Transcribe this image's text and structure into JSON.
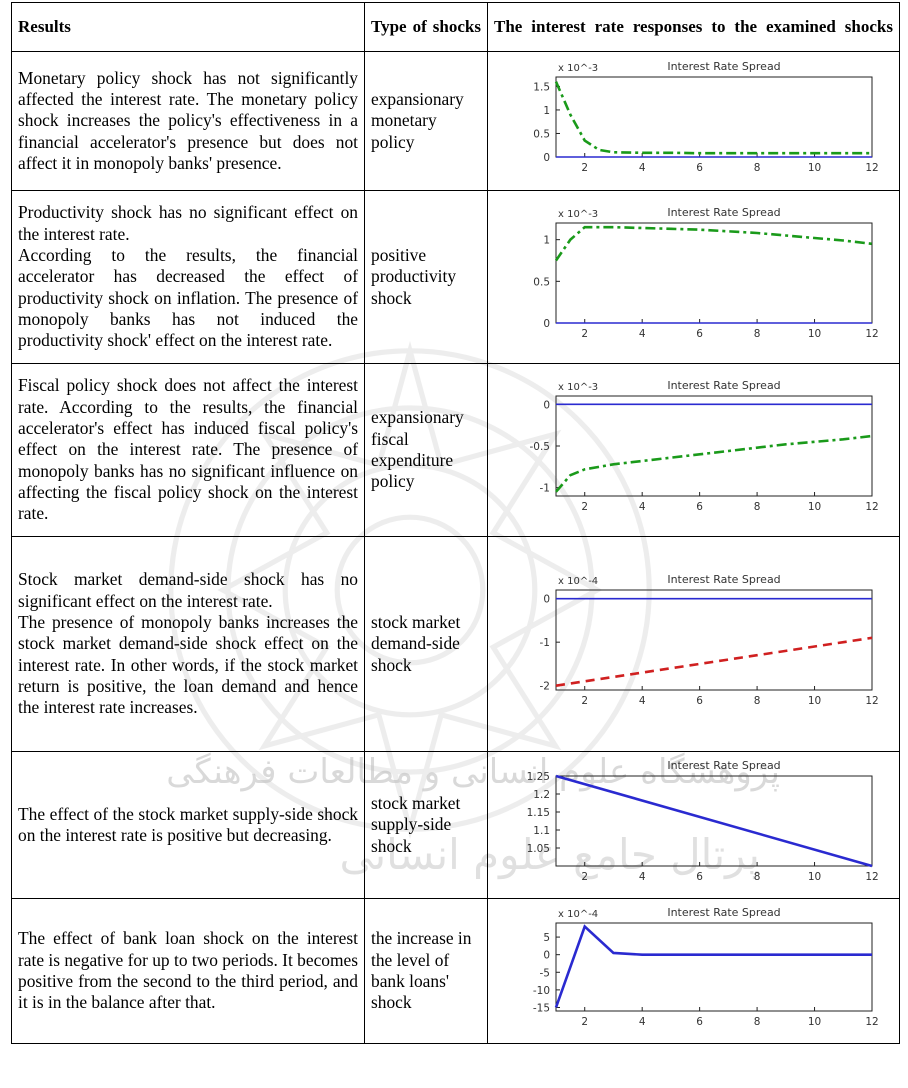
{
  "header": {
    "col1": "Results",
    "col2": "Type of shocks",
    "col3": "The interest rate responses to the examined shocks"
  },
  "watermark": {
    "line1": "پژوهشگاه علوم انسانی و مطالعات فرهنگی",
    "line2": "پرتال جامع علوم انسانی"
  },
  "rows": [
    {
      "result": "Monetary policy shock has not significantly affected the interest rate. The monetary policy shock increases the policy's effectiveness in a financial accelerator's presence but does not affect it in monopoly banks' presence.",
      "type": "expansionary monetary policy"
    },
    {
      "result_p1": "Productivity shock has no significant effect on the interest rate.",
      "result_p2": "According to the results, the financial accelerator has decreased the effect of productivity shock on inflation. The presence of monopoly banks has not induced the productivity shock' effect on the interest rate.",
      "type": "positive productivity shock"
    },
    {
      "result": "Fiscal policy shock does not affect the interest rate. According to the results, the financial accelerator's effect has induced fiscal policy's effect on the interest rate. The presence of monopoly banks has no significant influence on affecting the fiscal policy shock on the interest rate.",
      "type": "expansionary fiscal expenditure policy"
    },
    {
      "result_p1": "Stock market demand-side shock has no significant effect on the interest rate.",
      "result_p2": "The presence of monopoly banks increases the stock market demand-side shock effect on the interest rate. In other words, if the stock market return is positive, the loan demand and hence the interest rate increases.",
      "type": "stock market demand-side shock"
    },
    {
      "result": "The effect of the stock market supply-side shock on the interest rate is positive but decreasing.",
      "type": "stock market supply-side shock"
    },
    {
      "result": "The effect of bank loan shock on the interest rate is negative for up to two periods. It becomes positive from the second to the third period, and it is in the balance after that.",
      "type": "the increase in the level of bank loans' shock"
    }
  ],
  "chart_data": [
    {
      "type": "line",
      "title": "Interest Rate Spread",
      "scale_label": "x 10^-3",
      "x_ticks": [
        2,
        4,
        6,
        8,
        10,
        12
      ],
      "y_ticks": [
        "0",
        "0.5",
        "1",
        "1.5"
      ],
      "xlim": [
        1,
        12
      ],
      "ylim": [
        0,
        1.7
      ],
      "series": [
        {
          "style": "baseline",
          "color": "#2a2ad0",
          "x": [
            1,
            12
          ],
          "y": [
            0,
            0
          ]
        },
        {
          "style": "dashdot",
          "color": "#1a9a1a",
          "x": [
            1,
            1.5,
            2,
            2.5,
            3,
            4,
            5,
            6,
            7,
            8,
            9,
            10,
            11,
            12
          ],
          "y": [
            1.6,
            0.9,
            0.35,
            0.15,
            0.1,
            0.09,
            0.09,
            0.08,
            0.08,
            0.08,
            0.08,
            0.08,
            0.08,
            0.08
          ]
        }
      ]
    },
    {
      "type": "line",
      "title": "Interest Rate Spread",
      "scale_label": "x 10^-3",
      "x_ticks": [
        2,
        4,
        6,
        8,
        10,
        12
      ],
      "y_ticks": [
        "0",
        "0.5",
        "1"
      ],
      "xlim": [
        1,
        12
      ],
      "ylim": [
        0,
        1.2
      ],
      "series": [
        {
          "style": "baseline",
          "color": "#2a2ad0",
          "x": [
            1,
            12
          ],
          "y": [
            0,
            0
          ]
        },
        {
          "style": "dashdot",
          "color": "#1a9a1a",
          "x": [
            1,
            1.5,
            2,
            3,
            4,
            5,
            6,
            7,
            8,
            9,
            10,
            11,
            12
          ],
          "y": [
            0.75,
            1.0,
            1.15,
            1.15,
            1.14,
            1.13,
            1.12,
            1.1,
            1.08,
            1.05,
            1.02,
            0.99,
            0.95
          ]
        }
      ]
    },
    {
      "type": "line",
      "title": "Interest Rate Spread",
      "scale_label": "x 10^-3",
      "x_ticks": [
        2,
        4,
        6,
        8,
        10,
        12
      ],
      "y_ticks": [
        "-1",
        "-0.5",
        "0"
      ],
      "xlim": [
        1,
        12
      ],
      "ylim": [
        -1.1,
        0.1
      ],
      "series": [
        {
          "style": "baseline",
          "color": "#2a2ad0",
          "x": [
            1,
            12
          ],
          "y": [
            0,
            0
          ]
        },
        {
          "style": "dashdot",
          "color": "#1a9a1a",
          "x": [
            1,
            1.5,
            2,
            3,
            4,
            5,
            6,
            7,
            8,
            9,
            10,
            11,
            12
          ],
          "y": [
            -1.05,
            -0.85,
            -0.78,
            -0.72,
            -0.68,
            -0.64,
            -0.6,
            -0.56,
            -0.52,
            -0.48,
            -0.45,
            -0.42,
            -0.38
          ]
        }
      ]
    },
    {
      "type": "line",
      "title": "Interest Rate Spread",
      "scale_label": "x 10^-4",
      "x_ticks": [
        2,
        4,
        6,
        8,
        10,
        12
      ],
      "y_ticks": [
        "-2",
        "-1",
        "0"
      ],
      "xlim": [
        1,
        12
      ],
      "ylim": [
        -2.1,
        0.2
      ],
      "series": [
        {
          "style": "baseline",
          "color": "#2a2ad0",
          "x": [
            1,
            12
          ],
          "y": [
            0,
            0
          ]
        },
        {
          "style": "dashed",
          "color": "#d02020",
          "x": [
            1,
            2,
            3,
            4,
            5,
            6,
            7,
            8,
            9,
            10,
            11,
            12
          ],
          "y": [
            -2.0,
            -1.9,
            -1.8,
            -1.7,
            -1.6,
            -1.5,
            -1.4,
            -1.3,
            -1.2,
            -1.1,
            -1.0,
            -0.9
          ]
        }
      ]
    },
    {
      "type": "line",
      "title": "Interest Rate Spread",
      "scale_label": "",
      "x_ticks": [
        2,
        4,
        6,
        8,
        10,
        12
      ],
      "y_ticks": [
        "1.05",
        "1.1",
        "1.15",
        "1.2",
        "1.25"
      ],
      "xlim": [
        1,
        12
      ],
      "ylim": [
        1.0,
        1.25
      ],
      "series": [
        {
          "style": "solid",
          "color": "#2a2ad0",
          "x": [
            1,
            12
          ],
          "y": [
            1.25,
            1.0
          ]
        }
      ]
    },
    {
      "type": "line",
      "title": "Interest Rate Spread",
      "scale_label": "x 10^-4",
      "x_ticks": [
        2,
        4,
        6,
        8,
        10,
        12
      ],
      "y_ticks": [
        "-15",
        "-10",
        "-5",
        "0",
        "5"
      ],
      "xlim": [
        1,
        12
      ],
      "ylim": [
        -16,
        9
      ],
      "series": [
        {
          "style": "solid",
          "color": "#2a2ad0",
          "x": [
            1,
            2,
            3,
            4,
            5,
            6,
            7,
            8,
            9,
            10,
            11,
            12
          ],
          "y": [
            -15,
            8,
            0.5,
            0,
            0,
            0,
            0,
            0,
            0,
            0,
            0,
            0
          ]
        }
      ]
    }
  ]
}
